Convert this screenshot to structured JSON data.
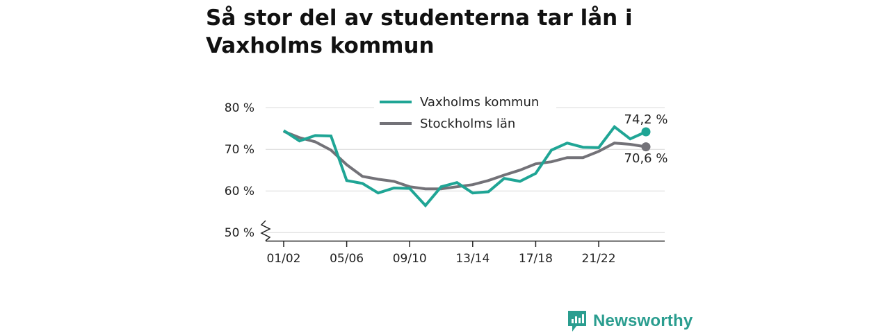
{
  "title": "Så stor del av studenterna tar lån i Vaxholms kommun",
  "brand": {
    "name": "Newsworthy"
  },
  "colors": {
    "vaxholm": "#1fa595",
    "stockholm": "#737278",
    "grid": "#d9d9d9",
    "axis": "#222222"
  },
  "chart_data": {
    "type": "line",
    "title": "Så stor del av studenterna tar lån i Vaxholms kommun",
    "x": [
      "01/02",
      "02/03",
      "03/04",
      "04/05",
      "05/06",
      "06/07",
      "07/08",
      "08/09",
      "09/10",
      "10/11",
      "11/12",
      "12/13",
      "13/14",
      "14/15",
      "15/16",
      "16/17",
      "17/18",
      "18/19",
      "19/20",
      "20/21",
      "21/22",
      "22/23",
      "23/24",
      "24/25"
    ],
    "x_tick_labels": [
      "01/02",
      "05/06",
      "09/10",
      "13/14",
      "17/18",
      "21/22"
    ],
    "y_ticks": [
      50,
      60,
      70,
      80
    ],
    "y_tick_labels": [
      "50 %",
      "60 %",
      "70 %",
      "80 %"
    ],
    "ylim": [
      48,
      82
    ],
    "y_axis_break": true,
    "grid": true,
    "legend_position": "top-center",
    "series": [
      {
        "name": "Vaxholms kommun",
        "color": "#1fa595",
        "values": [
          74.5,
          72.0,
          73.3,
          73.2,
          62.5,
          61.8,
          59.5,
          60.7,
          60.6,
          56.5,
          61.0,
          62.0,
          59.5,
          59.8,
          63.0,
          62.3,
          64.2,
          69.8,
          71.5,
          70.5,
          70.4,
          75.4,
          72.5,
          74.2
        ],
        "end_label": "74,2 %"
      },
      {
        "name": "Stockholms län",
        "color": "#737278",
        "values": [
          74.3,
          72.8,
          71.8,
          69.8,
          66.3,
          63.5,
          62.8,
          62.3,
          61.0,
          60.5,
          60.5,
          61.0,
          61.5,
          62.5,
          63.8,
          65.0,
          66.5,
          67.0,
          68.0,
          68.0,
          69.5,
          71.5,
          71.2,
          70.6
        ],
        "end_label": "70,6 %"
      }
    ]
  }
}
